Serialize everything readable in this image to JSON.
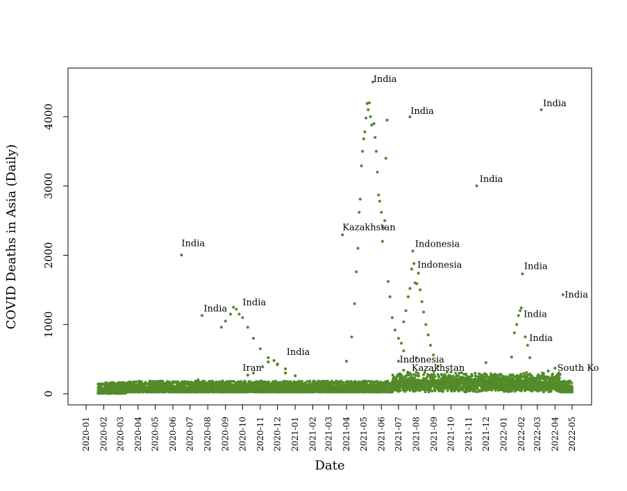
{
  "chart_data": {
    "type": "scatter",
    "title": "",
    "xlabel": "Date",
    "ylabel": "COVID Deaths in Asia (Daily)",
    "color": "#548b2a",
    "grid": false,
    "xlim": [
      "2020-01-01",
      "2022-05-01"
    ],
    "ylim": [
      0,
      4500
    ],
    "x_ticks": [
      "2020-01",
      "2020-02",
      "2020-03",
      "2020-04",
      "2020-05",
      "2020-06",
      "2020-07",
      "2020-08",
      "2020-09",
      "2020-10",
      "2020-11",
      "2020-12",
      "2021-01",
      "2021-02",
      "2021-03",
      "2021-04",
      "2021-05",
      "2021-06",
      "2021-07",
      "2021-08",
      "2021-09",
      "2021-10",
      "2021-11",
      "2021-12",
      "2022-01",
      "2022-02",
      "2022-03",
      "2022-04",
      "2022-05"
    ],
    "y_ticks": [
      0,
      1000,
      2000,
      3000,
      4000
    ],
    "series": [
      {
        "name": "India",
        "points": [
          [
            "2020-06-16",
            2003
          ],
          [
            "2020-07-22",
            1130
          ],
          [
            "2020-08-25",
            960
          ],
          [
            "2020-09-01",
            1050
          ],
          [
            "2020-09-10",
            1150
          ],
          [
            "2020-09-15",
            1250
          ],
          [
            "2020-09-20",
            1220
          ],
          [
            "2020-09-25",
            1150
          ],
          [
            "2020-10-01",
            1100
          ],
          [
            "2020-10-10",
            960
          ],
          [
            "2020-10-20",
            800
          ],
          [
            "2020-11-01",
            650
          ],
          [
            "2020-11-15",
            520
          ],
          [
            "2020-12-01",
            430
          ],
          [
            "2020-12-15",
            360
          ],
          [
            "2021-01-01",
            260
          ],
          [
            "2021-02-01",
            110
          ],
          [
            "2021-03-01",
            110
          ],
          [
            "2021-03-20",
            170
          ],
          [
            "2021-04-01",
            470
          ],
          [
            "2021-04-10",
            820
          ],
          [
            "2021-04-15",
            1300
          ],
          [
            "2021-04-18",
            1760
          ],
          [
            "2021-04-21",
            2100
          ],
          [
            "2021-04-23",
            2620
          ],
          [
            "2021-04-25",
            2810
          ],
          [
            "2021-04-27",
            3290
          ],
          [
            "2021-04-29",
            3500
          ],
          [
            "2021-05-01",
            3680
          ],
          [
            "2021-05-03",
            3780
          ],
          [
            "2021-05-05",
            3980
          ],
          [
            "2021-05-07",
            4190
          ],
          [
            "2021-05-09",
            4100
          ],
          [
            "2021-05-11",
            4200
          ],
          [
            "2021-05-13",
            4000
          ],
          [
            "2021-05-15",
            3880
          ],
          [
            "2021-05-17",
            4500
          ],
          [
            "2021-05-19",
            3900
          ],
          [
            "2021-05-21",
            3700
          ],
          [
            "2021-05-23",
            3500
          ],
          [
            "2021-05-25",
            3200
          ],
          [
            "2021-05-27",
            2870
          ],
          [
            "2021-05-29",
            2780
          ],
          [
            "2021-06-01",
            2620
          ],
          [
            "2021-06-03",
            2200
          ],
          [
            "2021-06-05",
            2400
          ],
          [
            "2021-06-07",
            2500
          ],
          [
            "2021-06-09",
            3400
          ],
          [
            "2021-06-11",
            3950
          ],
          [
            "2021-06-13",
            1620
          ],
          [
            "2021-06-16",
            1400
          ],
          [
            "2021-06-20",
            1100
          ],
          [
            "2021-06-25",
            920
          ],
          [
            "2021-07-01",
            800
          ],
          [
            "2021-07-10",
            620
          ],
          [
            "2021-07-21",
            3998
          ],
          [
            "2021-08-01",
            520
          ],
          [
            "2021-09-01",
            320
          ],
          [
            "2021-10-01",
            250
          ],
          [
            "2021-11-15",
            3002
          ],
          [
            "2021-12-01",
            450
          ],
          [
            "2022-01-15",
            530
          ],
          [
            "2022-01-20",
            880
          ],
          [
            "2022-01-24",
            1000
          ],
          [
            "2022-01-27",
            1130
          ],
          [
            "2022-01-30",
            1200
          ],
          [
            "2022-02-01",
            1240
          ],
          [
            "2022-02-03",
            1730
          ],
          [
            "2022-02-08",
            820
          ],
          [
            "2022-02-12",
            700
          ],
          [
            "2022-02-16",
            520
          ],
          [
            "2022-03-08",
            4100
          ],
          [
            "2022-04-15",
            1430
          ]
        ]
      },
      {
        "name": "Indonesia",
        "points": [
          [
            "2021-07-01",
            470
          ],
          [
            "2021-07-06",
            730
          ],
          [
            "2021-07-10",
            1040
          ],
          [
            "2021-07-14",
            1200
          ],
          [
            "2021-07-18",
            1400
          ],
          [
            "2021-07-21",
            1520
          ],
          [
            "2021-07-24",
            1800
          ],
          [
            "2021-07-26",
            2060
          ],
          [
            "2021-07-28",
            1880
          ],
          [
            "2021-07-30",
            1600
          ],
          [
            "2021-08-02",
            1590
          ],
          [
            "2021-08-05",
            1740
          ],
          [
            "2021-08-08",
            1500
          ],
          [
            "2021-08-11",
            1330
          ],
          [
            "2021-08-14",
            1180
          ],
          [
            "2021-08-18",
            1000
          ],
          [
            "2021-08-22",
            850
          ],
          [
            "2021-08-26",
            700
          ],
          [
            "2021-08-31",
            560
          ],
          [
            "2021-09-08",
            400
          ],
          [
            "2021-09-20",
            250
          ],
          [
            "2021-10-10",
            100
          ]
        ]
      },
      {
        "name": "Kazakhstan",
        "points": [
          [
            "2021-03-25",
            2295
          ],
          [
            "2021-07-01",
            280
          ],
          [
            "2021-07-10",
            340
          ],
          [
            "2021-07-20",
            300
          ],
          [
            "2021-08-01",
            310
          ]
        ]
      },
      {
        "name": "Iran",
        "points": [
          [
            "2020-03-20",
            140
          ],
          [
            "2020-04-01",
            130
          ],
          [
            "2020-05-01",
            60
          ],
          [
            "2020-06-10",
            120
          ],
          [
            "2020-07-15",
            200
          ],
          [
            "2020-08-10",
            170
          ],
          [
            "2020-09-15",
            180
          ],
          [
            "2020-10-10",
            270
          ],
          [
            "2020-10-20",
            300
          ],
          [
            "2020-11-05",
            390
          ],
          [
            "2020-11-15",
            460
          ],
          [
            "2020-11-25",
            480
          ],
          [
            "2020-12-01",
            420
          ],
          [
            "2020-12-15",
            300
          ],
          [
            "2021-01-01",
            110
          ]
        ]
      },
      {
        "name": "South Korea",
        "points": [
          [
            "2022-03-10",
            300
          ],
          [
            "2022-03-20",
            330
          ],
          [
            "2022-04-01",
            370
          ],
          [
            "2022-04-10",
            280
          ],
          [
            "2022-04-20",
            170
          ]
        ]
      }
    ],
    "annotations": [
      {
        "text": "India",
        "x": "2020-06-16",
        "y": 2130
      },
      {
        "text": "India",
        "x": "2020-07-25",
        "y": 1190
      },
      {
        "text": "India",
        "x": "2020-10-01",
        "y": 1280
      },
      {
        "text": "Iran",
        "x": "2020-10-01",
        "y": 330
      },
      {
        "text": "India",
        "x": "2020-12-17",
        "y": 560
      },
      {
        "text": "Kazakhstan",
        "x": "2021-03-25",
        "y": 2360
      },
      {
        "text": "India",
        "x": "2021-05-18",
        "y": 4500
      },
      {
        "text": "India",
        "x": "2021-07-22",
        "y": 4040
      },
      {
        "text": "Indonesia",
        "x": "2021-07-30",
        "y": 2120
      },
      {
        "text": "Indonesia",
        "x": "2021-08-03",
        "y": 1820
      },
      {
        "text": "Indonesia",
        "x": "2021-07-03",
        "y": 450
      },
      {
        "text": "Kazakhstan",
        "x": "2021-07-24",
        "y": 330
      },
      {
        "text": "India",
        "x": "2021-11-20",
        "y": 3060
      },
      {
        "text": "India",
        "x": "2022-02-06",
        "y": 1800
      },
      {
        "text": "India",
        "x": "2022-02-05",
        "y": 1110
      },
      {
        "text": "India",
        "x": "2022-02-15",
        "y": 760
      },
      {
        "text": "India",
        "x": "2022-03-11",
        "y": 4150
      },
      {
        "text": "India",
        "x": "2022-04-18",
        "y": 1390
      },
      {
        "text": "South Ko",
        "x": "2022-04-05",
        "y": 330
      }
    ]
  }
}
